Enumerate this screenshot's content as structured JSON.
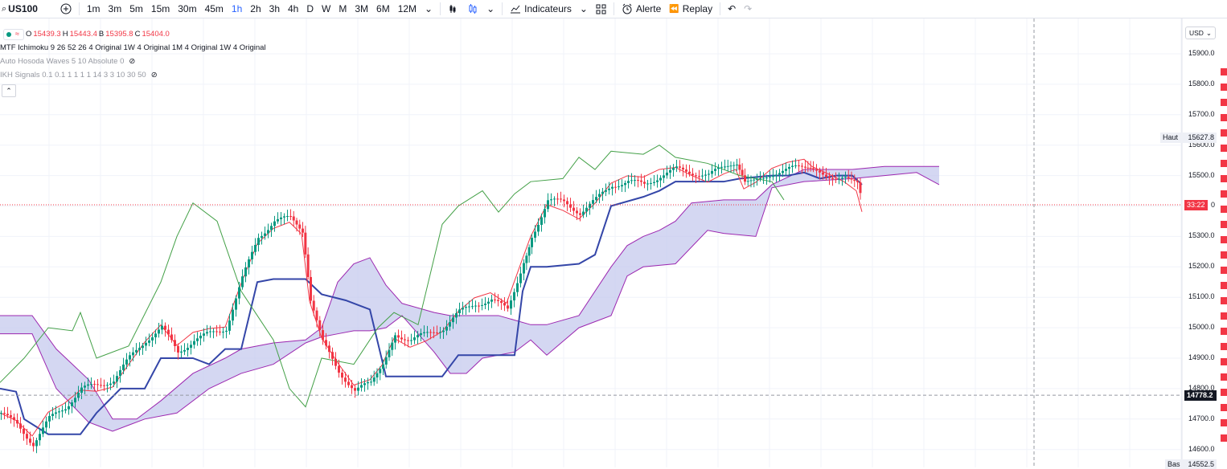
{
  "toolbar": {
    "symbol": "US100",
    "add_symbol_icon": "plus-circle-icon",
    "timeframes": [
      "1m",
      "3m",
      "5m",
      "15m",
      "30m",
      "45m",
      "1h",
      "2h",
      "3h",
      "4h",
      "D",
      "W",
      "M",
      "3M",
      "6M",
      "12M"
    ],
    "active_timeframe": "1h",
    "indicators_label": "Indicateurs",
    "alert_label": "Alerte",
    "replay_label": "Replay"
  },
  "legend": {
    "ohlc": {
      "o_label": "O",
      "o": "15439.3",
      "h_label": "H",
      "h": "15443.4",
      "b_label": "B",
      "b": "15395.8",
      "c_label": "C",
      "c": "15404.0"
    },
    "indicators": [
      "MTF Ichimoku 9 26 52 26 4 Original 1W 4 Original 1M 4 Original 1W 4 Original",
      "Auto Hosoda Waves 5 10 Absolute 0",
      "IKH Signals 0.1 0.1 1 1 1 1 14 3 3 10 30 50"
    ]
  },
  "price_axis": {
    "currency": "USD",
    "ticks": [
      "15900.0",
      "15800.0",
      "15700.0",
      "15600.0",
      "15500.0",
      "15300.0",
      "15200.0",
      "15100.0",
      "15000.0",
      "14900.0",
      "14800.0",
      "14700.0",
      "14600.0"
    ],
    "high_label": "Haut",
    "high_value": "15627.8",
    "low_label": "Bas",
    "low_value": "14552.5",
    "countdown": "33:22",
    "crosshair_price": "14778.2",
    "last_price_tail": "0"
  },
  "colors": {
    "up": "#089981",
    "down": "#f23645",
    "kijun": "#3446a8",
    "tenkan": "#f23645",
    "chikou": "#43a047",
    "cloud": "#c5c9ee",
    "cloud_edge": "#9c27b0",
    "accent": "#2962ff"
  }
}
